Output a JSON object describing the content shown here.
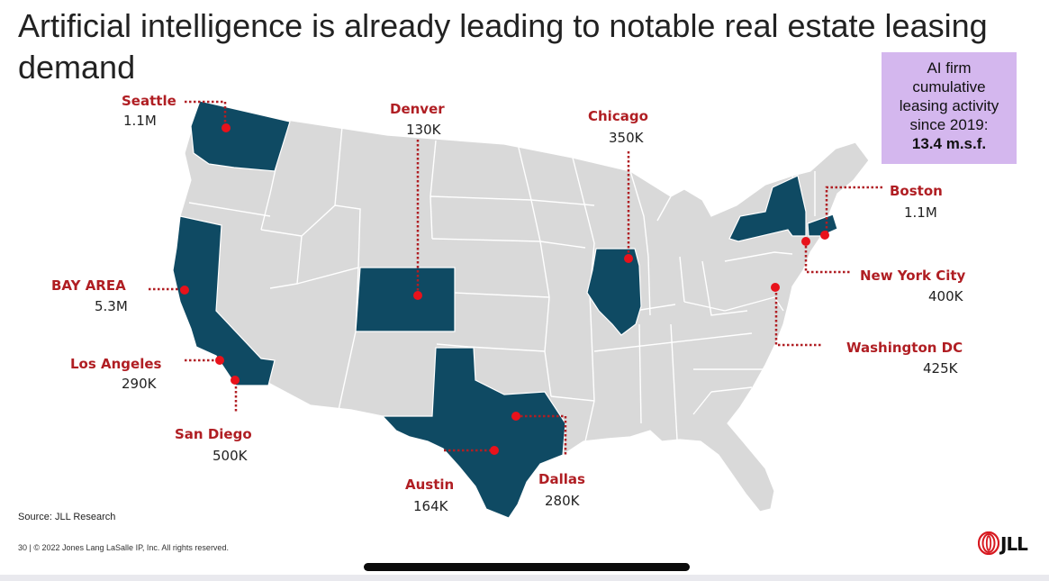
{
  "slide": {
    "title": "Artificial intelligence is already leading to notable real estate leasing demand"
  },
  "callout": {
    "line1": "AI firm",
    "line2": "cumulative",
    "line3": "leasing activity",
    "line4": "since 2019:",
    "total": "13.4 m.s.f."
  },
  "cities": [
    {
      "name": "Seattle",
      "value": "1.1M"
    },
    {
      "name": "BAY AREA",
      "value": "5.3M"
    },
    {
      "name": "Los Angeles",
      "value": "290K"
    },
    {
      "name": "San Diego",
      "value": "500K"
    },
    {
      "name": "Denver",
      "value": "130K"
    },
    {
      "name": "Austin",
      "value": "164K"
    },
    {
      "name": "Dallas",
      "value": "280K"
    },
    {
      "name": "Chicago",
      "value": "350K"
    },
    {
      "name": "Boston",
      "value": "1.1M"
    },
    {
      "name": "New York City",
      "value": "400K"
    },
    {
      "name": "Washington DC",
      "value": "425K"
    }
  ],
  "highlighted_states": [
    "Washington",
    "California",
    "Colorado",
    "Texas",
    "Illinois",
    "New York",
    "Massachusetts"
  ],
  "colors": {
    "highlight_state": "#0f4a63",
    "other_state": "#d9d9d9",
    "city_label": "#b01e23",
    "marker": "#e8121b",
    "callout_bg": "#d4b7ee"
  },
  "footer": {
    "source": "Source: JLL Research",
    "copyright": "30  |  © 2022 Jones Lang LaSalle IP, Inc. All rights reserved."
  },
  "logo": {
    "text": "JLL"
  }
}
